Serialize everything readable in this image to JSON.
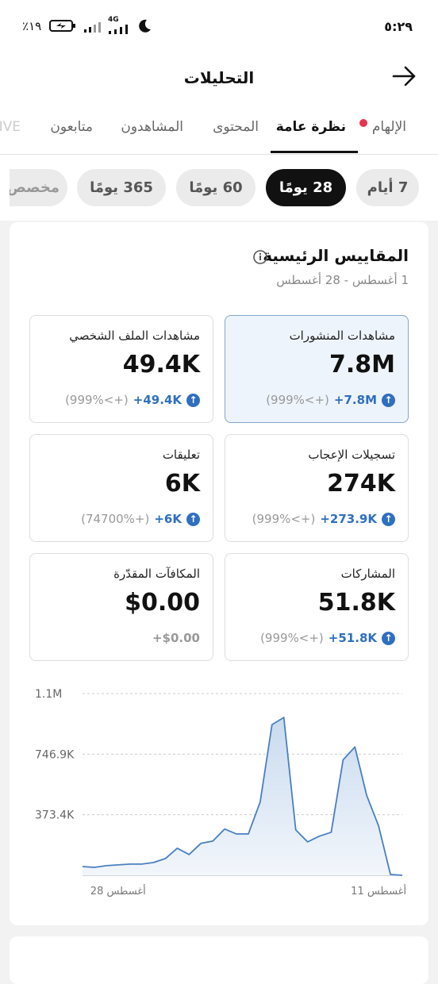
{
  "status_bar": {
    "battery": "٪١٩",
    "network": "4G",
    "time": "٥:٢٩"
  },
  "header": {
    "title": "التحليلات"
  },
  "tabs": [
    "الإلهام",
    "نظرة عامة",
    "المحتوى",
    "المشاهدون",
    "متابعون",
    "LIVE"
  ],
  "periods": [
    "7 أيام",
    "28 يومًا",
    "60 يومًا",
    "365 يومًا",
    "مخصص"
  ],
  "key_metrics": {
    "title": "المقاييس الرئيسية",
    "date_range": "1 أغسطس - 28 أغسطس",
    "cards": [
      {
        "label": "مشاهدات المنشورات",
        "value": "7.8M",
        "change": "+7.8M",
        "percent": "(999%<+)"
      },
      {
        "label": "مشاهدات الملف الشخصي",
        "value": "49.4K",
        "change": "+49.4K",
        "percent": "(999%<+)"
      },
      {
        "label": "تسجيلات الإعجاب",
        "value": "274K",
        "change": "+273.9K",
        "percent": "(999%<+)"
      },
      {
        "label": "تعليقات",
        "value": "6K",
        "change": "+6K",
        "percent": "(74700%+)"
      },
      {
        "label": "المشاركات",
        "value": "51.8K",
        "change": "+51.8K",
        "percent": "(999%<+)"
      },
      {
        "label": "المكافآت المقدّرة",
        "value": "$0.00",
        "change": "+$0.00"
      }
    ]
  },
  "chart_data": {
    "type": "line",
    "categories": [
      null,
      null,
      null,
      "أغسطس 28",
      null,
      null,
      null,
      null,
      null,
      null,
      null,
      null,
      null,
      null,
      null,
      null,
      null,
      null,
      null,
      null,
      null,
      null,
      null,
      null,
      null,
      "أغسطس 11",
      null,
      null
    ],
    "series": [
      {
        "color": "#4a7fc1",
        "values": [
          54000,
          49000,
          59000,
          64000,
          69000,
          69000,
          79000,
          103000,
          167000,
          128000,
          197000,
          211000,
          285000,
          255000,
          255000,
          452000,
          929000,
          973000,
          280000,
          206000,
          241000,
          265000,
          712000,
          791000,
          491000,
          305000,
          5000,
          0
        ]
      }
    ],
    "ylim": [
      0,
      1120300
    ],
    "yticks": [
      {
        "value": 373400,
        "label": "373.4K"
      },
      {
        "value": 746900,
        "label": "746.9K"
      },
      {
        "value": 1120300,
        "label": "1.1M"
      }
    ],
    "grid": true
  }
}
